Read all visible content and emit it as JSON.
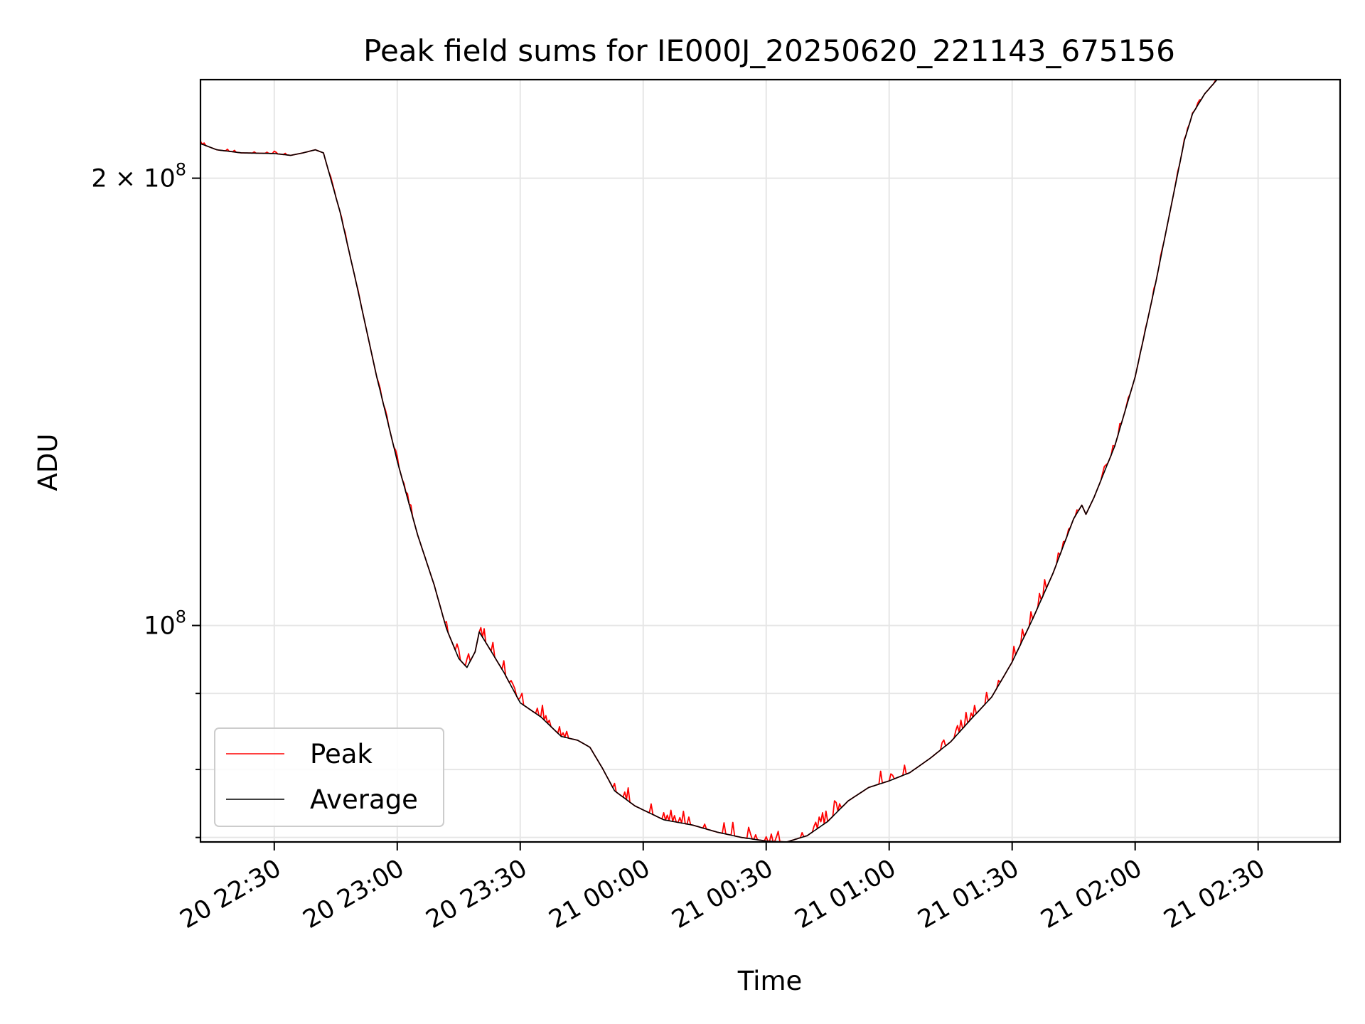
{
  "chart_data": {
    "type": "line",
    "title": "Peak field sums for IE000J_20250620_221143_675156",
    "xlabel": "Time",
    "ylabel": "ADU",
    "yscale": "log",
    "xlim": [
      "2025-06-20 22:12",
      "2025-06-21 02:50"
    ],
    "ylim": [
      71500000,
      233000000
    ],
    "x_ticks": [
      {
        "t": "2025-06-20 22:30",
        "label": "20 22:30"
      },
      {
        "t": "2025-06-20 23:00",
        "label": "20 23:00"
      },
      {
        "t": "2025-06-20 23:30",
        "label": "20 23:30"
      },
      {
        "t": "2025-06-21 00:00",
        "label": "21 00:00"
      },
      {
        "t": "2025-06-21 00:30",
        "label": "21 00:30"
      },
      {
        "t": "2025-06-21 01:00",
        "label": "21 01:00"
      },
      {
        "t": "2025-06-21 01:30",
        "label": "21 01:30"
      },
      {
        "t": "2025-06-21 02:00",
        "label": "21 02:00"
      },
      {
        "t": "2025-06-21 02:30",
        "label": "21 02:30"
      }
    ],
    "y_major_ticks": [
      {
        "value": 200000000,
        "base": "2 × 10",
        "exp": "8"
      },
      {
        "value": 100000000,
        "base": "10",
        "exp": "8"
      }
    ],
    "y_minor_ticks": [
      90000000,
      80000000,
      72000000
    ],
    "grid": true,
    "legend_position": "lower-left",
    "series": [
      {
        "name": "Peak",
        "color": "#ff0000",
        "noisy": true,
        "points": [
          [
            "2025-06-20 22:12",
            211000000
          ],
          [
            "2025-06-20 22:16",
            209000000
          ],
          [
            "2025-06-20 22:22",
            208000000
          ],
          [
            "2025-06-20 22:30",
            207800000
          ],
          [
            "2025-06-20 22:34",
            207200000
          ],
          [
            "2025-06-20 22:37",
            208000000
          ],
          [
            "2025-06-20 22:40",
            209000000
          ],
          [
            "2025-06-20 22:42",
            208000000
          ],
          [
            "2025-06-20 22:46",
            190000000
          ],
          [
            "2025-06-20 22:50",
            170000000
          ],
          [
            "2025-06-20 22:55",
            147000000
          ],
          [
            "2025-06-20 23:00",
            129000000
          ],
          [
            "2025-06-20 23:05",
            115000000
          ],
          [
            "2025-06-20 23:09",
            106500000
          ],
          [
            "2025-06-20 23:12",
            99500000
          ],
          [
            "2025-06-20 23:15",
            95000000
          ],
          [
            "2025-06-20 23:17",
            93700000
          ],
          [
            "2025-06-20 23:19",
            96000000
          ],
          [
            "2025-06-20 23:20",
            99000000
          ],
          [
            "2025-06-20 23:22",
            97000000
          ],
          [
            "2025-06-20 23:26",
            93000000
          ],
          [
            "2025-06-20 23:30",
            88700000
          ],
          [
            "2025-06-20 23:35",
            86800000
          ],
          [
            "2025-06-20 23:40",
            84200000
          ],
          [
            "2025-06-20 23:44",
            83700000
          ],
          [
            "2025-06-20 23:47",
            82800000
          ],
          [
            "2025-06-20 23:50",
            80200000
          ],
          [
            "2025-06-20 23:53",
            77400000
          ],
          [
            "2025-06-20 23:58",
            75600000
          ],
          [
            "2025-06-21 00:05",
            74000000
          ],
          [
            "2025-06-21 00:12",
            73400000
          ],
          [
            "2025-06-21 00:18",
            72600000
          ],
          [
            "2025-06-21 00:24",
            72000000
          ],
          [
            "2025-06-21 00:30",
            71600000
          ],
          [
            "2025-06-21 00:35",
            71500000
          ],
          [
            "2025-06-21 00:40",
            72200000
          ],
          [
            "2025-06-21 00:45",
            73800000
          ],
          [
            "2025-06-21 00:50",
            76200000
          ],
          [
            "2025-06-21 00:55",
            77800000
          ],
          [
            "2025-06-21 01:00",
            78600000
          ],
          [
            "2025-06-21 01:05",
            79600000
          ],
          [
            "2025-06-21 01:10",
            81400000
          ],
          [
            "2025-06-21 01:15",
            83500000
          ],
          [
            "2025-06-21 01:20",
            86500000
          ],
          [
            "2025-06-21 01:25",
            89500000
          ],
          [
            "2025-06-21 01:30",
            94500000
          ],
          [
            "2025-06-21 01:35",
            101000000
          ],
          [
            "2025-06-21 01:40",
            108500000
          ],
          [
            "2025-06-21 01:45",
            118000000
          ],
          [
            "2025-06-21 01:47",
            120500000
          ],
          [
            "2025-06-21 01:48",
            118800000
          ],
          [
            "2025-06-21 01:50",
            122000000
          ],
          [
            "2025-06-21 01:55",
            132000000
          ],
          [
            "2025-06-21 02:00",
            147000000
          ],
          [
            "2025-06-21 02:05",
            170000000
          ],
          [
            "2025-06-21 02:10",
            199000000
          ],
          [
            "2025-06-21 02:12",
            212000000
          ],
          [
            "2025-06-21 02:14",
            221000000
          ],
          [
            "2025-06-21 02:17",
            228000000
          ],
          [
            "2025-06-21 02:20",
            233000000
          ]
        ]
      },
      {
        "name": "Average",
        "color": "#000000",
        "noisy": false,
        "points": [
          [
            "2025-06-20 22:12",
            211000000
          ],
          [
            "2025-06-20 22:16",
            209000000
          ],
          [
            "2025-06-20 22:22",
            208000000
          ],
          [
            "2025-06-20 22:30",
            207800000
          ],
          [
            "2025-06-20 22:34",
            207200000
          ],
          [
            "2025-06-20 22:37",
            208000000
          ],
          [
            "2025-06-20 22:40",
            209000000
          ],
          [
            "2025-06-20 22:42",
            208000000
          ],
          [
            "2025-06-20 22:46",
            190000000
          ],
          [
            "2025-06-20 22:50",
            170000000
          ],
          [
            "2025-06-20 22:55",
            147000000
          ],
          [
            "2025-06-20 23:00",
            129000000
          ],
          [
            "2025-06-20 23:05",
            115000000
          ],
          [
            "2025-06-20 23:09",
            106500000
          ],
          [
            "2025-06-20 23:12",
            99500000
          ],
          [
            "2025-06-20 23:15",
            95000000
          ],
          [
            "2025-06-20 23:17",
            93700000
          ],
          [
            "2025-06-20 23:19",
            96000000
          ],
          [
            "2025-06-20 23:20",
            99000000
          ],
          [
            "2025-06-20 23:22",
            97000000
          ],
          [
            "2025-06-20 23:26",
            93000000
          ],
          [
            "2025-06-20 23:30",
            88700000
          ],
          [
            "2025-06-20 23:35",
            86800000
          ],
          [
            "2025-06-20 23:40",
            84200000
          ],
          [
            "2025-06-20 23:44",
            83700000
          ],
          [
            "2025-06-20 23:47",
            82800000
          ],
          [
            "2025-06-20 23:50",
            80200000
          ],
          [
            "2025-06-20 23:53",
            77400000
          ],
          [
            "2025-06-20 23:58",
            75600000
          ],
          [
            "2025-06-21 00:05",
            74000000
          ],
          [
            "2025-06-21 00:12",
            73400000
          ],
          [
            "2025-06-21 00:18",
            72600000
          ],
          [
            "2025-06-21 00:24",
            72000000
          ],
          [
            "2025-06-21 00:30",
            71600000
          ],
          [
            "2025-06-21 00:35",
            71500000
          ],
          [
            "2025-06-21 00:40",
            72200000
          ],
          [
            "2025-06-21 00:45",
            73800000
          ],
          [
            "2025-06-21 00:50",
            76200000
          ],
          [
            "2025-06-21 00:55",
            77800000
          ],
          [
            "2025-06-21 01:00",
            78600000
          ],
          [
            "2025-06-21 01:05",
            79600000
          ],
          [
            "2025-06-21 01:10",
            81400000
          ],
          [
            "2025-06-21 01:15",
            83500000
          ],
          [
            "2025-06-21 01:20",
            86500000
          ],
          [
            "2025-06-21 01:25",
            89500000
          ],
          [
            "2025-06-21 01:30",
            94500000
          ],
          [
            "2025-06-21 01:35",
            101000000
          ],
          [
            "2025-06-21 01:40",
            108500000
          ],
          [
            "2025-06-21 01:45",
            118000000
          ],
          [
            "2025-06-21 01:47",
            120500000
          ],
          [
            "2025-06-21 01:48",
            118800000
          ],
          [
            "2025-06-21 01:50",
            122000000
          ],
          [
            "2025-06-21 01:55",
            132000000
          ],
          [
            "2025-06-21 02:00",
            147000000
          ],
          [
            "2025-06-21 02:05",
            170000000
          ],
          [
            "2025-06-21 02:10",
            199000000
          ],
          [
            "2025-06-21 02:12",
            212000000
          ],
          [
            "2025-06-21 02:14",
            221000000
          ],
          [
            "2025-06-21 02:17",
            228000000
          ],
          [
            "2025-06-21 02:20",
            233000000
          ]
        ]
      }
    ]
  }
}
